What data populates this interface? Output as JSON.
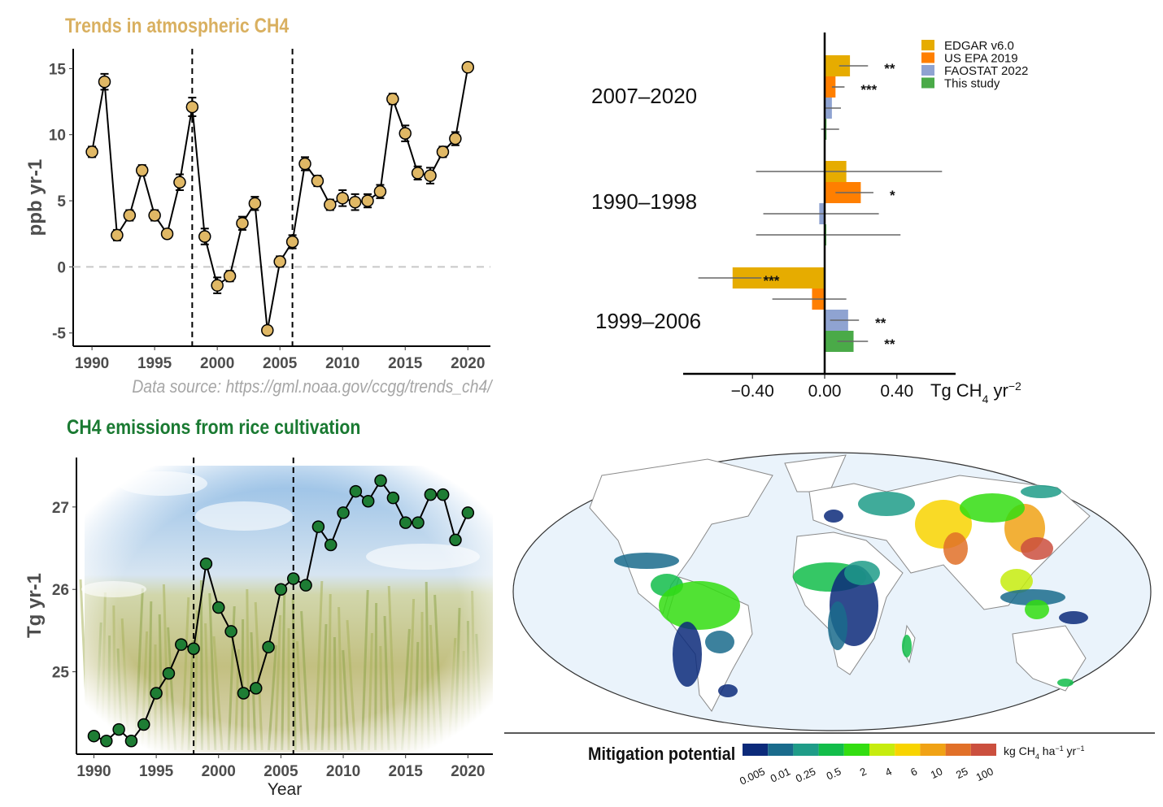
{
  "chart_data": [
    {
      "type": "line",
      "title": "Trends in atmospheric CH4",
      "title_color": "#d9b060",
      "ylabel": "ppb yr-1",
      "xlabel": "",
      "ylim": [
        -6,
        16.5
      ],
      "xlim": [
        1988.5,
        2021.8
      ],
      "yticks": [
        -5,
        0,
        5,
        10,
        15
      ],
      "xticks": [
        1990,
        1995,
        2000,
        2005,
        2010,
        2015,
        2020
      ],
      "vlines": [
        1998,
        2006
      ],
      "hline": 0,
      "marker_color": "#e0b865",
      "x": [
        1990,
        1991,
        1992,
        1993,
        1994,
        1995,
        1996,
        1997,
        1998,
        1999,
        2000,
        2001,
        2002,
        2003,
        2004,
        2005,
        2006,
        2007,
        2008,
        2009,
        2010,
        2011,
        2012,
        2013,
        2014,
        2015,
        2016,
        2017,
        2018,
        2019,
        2020
      ],
      "y": [
        8.7,
        14.0,
        2.4,
        3.9,
        7.3,
        3.9,
        2.5,
        6.4,
        12.1,
        2.3,
        -1.4,
        -0.7,
        3.3,
        4.8,
        -4.8,
        0.4,
        1.9,
        7.8,
        6.5,
        4.7,
        5.2,
        4.9,
        5.0,
        5.7,
        12.7,
        10.1,
        7.1,
        6.9,
        8.7,
        9.7,
        15.1
      ],
      "err": [
        0.4,
        0.6,
        0.4,
        0.4,
        0.4,
        0.4,
        0.3,
        0.6,
        0.7,
        0.6,
        0.6,
        0.4,
        0.5,
        0.5,
        0.3,
        0.4,
        0.5,
        0.5,
        0.4,
        0.4,
        0.6,
        0.6,
        0.5,
        0.5,
        0.4,
        0.6,
        0.5,
        0.6,
        0.4,
        0.5,
        0.3
      ],
      "annotation": "Data source: https://gml.noaa.gov/ccgg/trends_ch4/"
    },
    {
      "type": "bar",
      "orientation": "horizontal",
      "xlabel": "Tg CH4 yr-2",
      "xticks": [
        "-0.40",
        "0.00",
        "0.40"
      ],
      "xlim": [
        -0.75,
        0.77
      ],
      "categories": [
        "2007–2020",
        "1990–1998",
        "1999–2006"
      ],
      "series": [
        {
          "name": "EDGAR v6.0",
          "color": "#e6ac00",
          "values": [
            0.14,
            0.12,
            -0.51
          ],
          "low": [
            0.08,
            -0.38,
            -0.7
          ],
          "high": [
            0.24,
            0.65,
            -0.35
          ],
          "sig": [
            "**",
            "",
            "***"
          ]
        },
        {
          "name": "US EPA 2019",
          "color": "#ff7f00",
          "values": [
            0.06,
            0.2,
            -0.07
          ],
          "low": [
            0.04,
            0.06,
            -0.29
          ],
          "high": [
            0.11,
            0.27,
            0.12
          ],
          "sig": [
            "***",
            "*",
            ""
          ]
        },
        {
          "name": "FAOSTAT 2022",
          "color": "#8fa3d1",
          "values": [
            0.04,
            -0.03,
            0.13
          ],
          "low": [
            0.0,
            -0.34,
            0.03
          ],
          "high": [
            0.09,
            0.3,
            0.19
          ],
          "sig": [
            "",
            "",
            "**"
          ]
        },
        {
          "name": "This study",
          "color": "#4aaa48",
          "values": [
            0.01,
            0.005,
            0.16
          ],
          "low": [
            -0.02,
            -0.38,
            0.07
          ],
          "high": [
            0.08,
            0.42,
            0.24
          ],
          "sig": [
            "",
            "",
            "**"
          ]
        }
      ],
      "legend": "top-right"
    },
    {
      "type": "line",
      "title": "CH4 emissions from rice cultivation",
      "title_color": "#1a7a32",
      "ylabel": "Tg yr-1",
      "xlabel": "Year",
      "ylim": [
        24.0,
        27.6
      ],
      "xlim": [
        1988.6,
        2022
      ],
      "yticks": [
        25,
        26,
        27
      ],
      "xticks": [
        1990,
        1995,
        2000,
        2005,
        2010,
        2015,
        2020
      ],
      "vlines": [
        1998,
        2006
      ],
      "marker_color": "#1e7d34",
      "x": [
        1990,
        1991,
        1992,
        1993,
        1994,
        1995,
        1996,
        1997,
        1998,
        1999,
        2000,
        2001,
        2002,
        2003,
        2004,
        2005,
        2006,
        2007,
        2008,
        2009,
        2010,
        2011,
        2012,
        2013,
        2014,
        2015,
        2016,
        2017,
        2018,
        2019,
        2020
      ],
      "y": [
        24.22,
        24.16,
        24.3,
        24.16,
        24.36,
        24.74,
        24.98,
        25.33,
        25.28,
        26.31,
        25.78,
        25.49,
        24.74,
        24.8,
        25.3,
        26.0,
        26.13,
        26.05,
        26.76,
        26.54,
        26.93,
        27.19,
        27.07,
        27.32,
        27.11,
        26.81,
        26.81,
        27.15,
        27.15,
        26.6,
        26.93
      ]
    },
    {
      "type": "heatmap",
      "subtype": "map",
      "legend_title": "Mitigation potential",
      "unit": "kg CH4 ha-1 yr-1",
      "scale_labels": [
        "0.005",
        "0.01",
        "0.25",
        "0.5",
        "2",
        "4",
        "6",
        "10",
        "25",
        "100"
      ],
      "scale_colors": [
        "#0c2a7a",
        "#1a6b8c",
        "#1f9c88",
        "#12bd4a",
        "#33dd11",
        "#c6ec0e",
        "#f8d400",
        "#f0a215",
        "#e17028",
        "#cb4f3e"
      ],
      "ocean_color": "#eaf3fb"
    }
  ]
}
